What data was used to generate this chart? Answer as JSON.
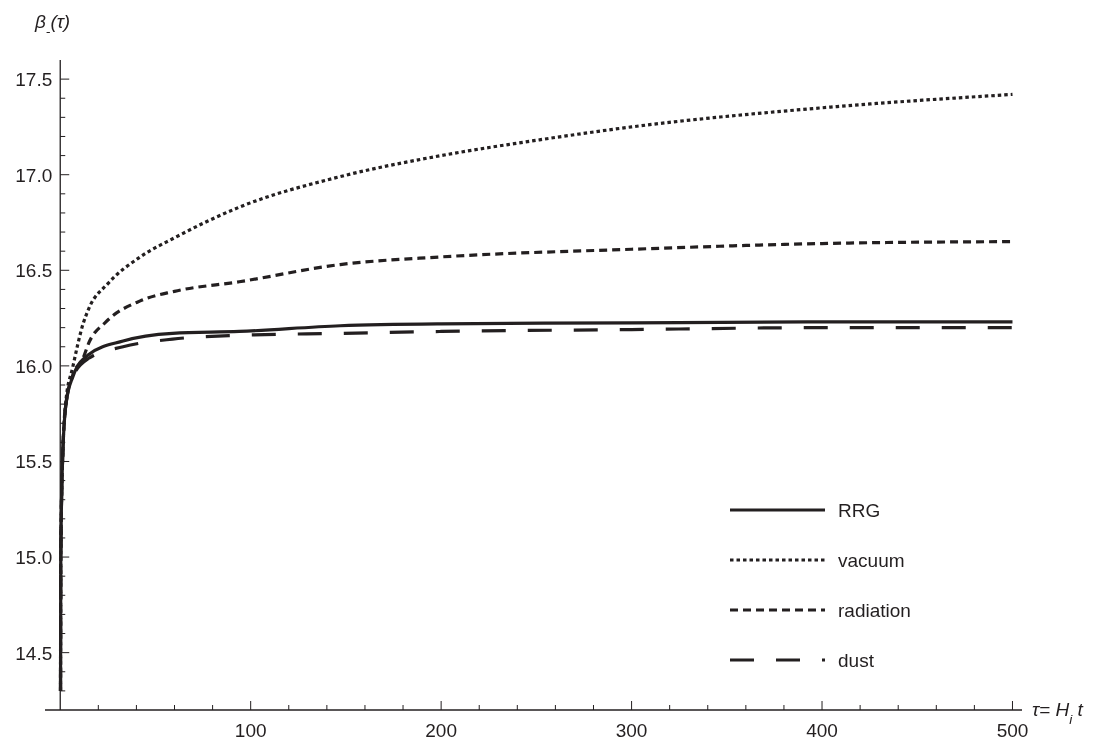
{
  "chart_data": {
    "type": "line",
    "xlabel": "τ= H$_{i}$ t",
    "ylabel": "β$_{-}$(τ)",
    "xlim": [
      -8,
      505
    ],
    "ylim": [
      14.2,
      17.6
    ],
    "xticks": [
      {
        "value": 20,
        "label": null
      },
      {
        "value": 40,
        "label": null
      },
      {
        "value": 60,
        "label": null
      },
      {
        "value": 80,
        "label": null
      },
      100,
      {
        "value": 120,
        "label": null
      },
      {
        "value": 140,
        "label": null
      },
      {
        "value": 160,
        "label": null
      },
      {
        "value": 180,
        "label": null
      },
      200,
      {
        "value": 220,
        "label": null
      },
      {
        "value": 240,
        "label": null
      },
      {
        "value": 260,
        "label": null
      },
      {
        "value": 280,
        "label": null
      },
      300,
      {
        "value": 320,
        "label": null
      },
      {
        "value": 340,
        "label": null
      },
      {
        "value": 360,
        "label": null
      },
      {
        "value": 380,
        "label": null
      },
      400,
      {
        "value": 420,
        "label": null
      },
      {
        "value": 440,
        "label": null
      },
      {
        "value": 460,
        "label": null
      },
      {
        "value": 480,
        "label": null
      },
      500
    ],
    "yticks": [
      {
        "value": 14.3,
        "label": null
      },
      {
        "value": 14.4,
        "label": null
      },
      {
        "value": 14.5,
        "label": "14.5"
      },
      {
        "value": 14.6,
        "label": null
      },
      {
        "value": 14.7,
        "label": null
      },
      {
        "value": 14.8,
        "label": null
      },
      {
        "value": 14.9,
        "label": null
      },
      {
        "value": 15.0,
        "label": "15.0"
      },
      {
        "value": 15.1,
        "label": null
      },
      {
        "value": 15.2,
        "label": null
      },
      {
        "value": 15.3,
        "label": null
      },
      {
        "value": 15.4,
        "label": null
      },
      {
        "value": 15.5,
        "label": "15.5"
      },
      {
        "value": 15.6,
        "label": null
      },
      {
        "value": 15.7,
        "label": null
      },
      {
        "value": 15.8,
        "label": null
      },
      {
        "value": 15.9,
        "label": null
      },
      {
        "value": 16.0,
        "label": "16.0"
      },
      {
        "value": 16.1,
        "label": null
      },
      {
        "value": 16.2,
        "label": null
      },
      {
        "value": 16.3,
        "label": null
      },
      {
        "value": 16.4,
        "label": null
      },
      {
        "value": 16.5,
        "label": "16.5"
      },
      {
        "value": 16.6,
        "label": null
      },
      {
        "value": 16.7,
        "label": null
      },
      {
        "value": 16.8,
        "label": null
      },
      {
        "value": 16.9,
        "label": null
      },
      {
        "value": 17.0,
        "label": "17.0"
      },
      {
        "value": 17.1,
        "label": null
      },
      {
        "value": 17.2,
        "label": null
      },
      {
        "value": 17.3,
        "label": null
      },
      {
        "value": 17.4,
        "label": null
      },
      {
        "value": 17.5,
        "label": "17.5"
      }
    ],
    "grid": false,
    "legend": "bottom right",
    "marker": "none",
    "series": [
      {
        "name": "RRG",
        "color": "#231f20",
        "line_style": "solid",
        "x": [
          0.15,
          0.3,
          1.2,
          3,
          6.5,
          15,
          33,
          59,
          94,
          147,
          200,
          300,
          400,
          500
        ],
        "values": [
          14.3,
          15.0,
          15.5,
          15.8,
          15.94,
          16.06,
          16.13,
          16.17,
          16.18,
          16.21,
          16.22,
          16.225,
          16.23,
          16.23
        ]
      },
      {
        "name": "vacuum",
        "color": "#231f20",
        "line_style": "dotted",
        "x": [
          0.15,
          0.3,
          1.2,
          3,
          6.5,
          12,
          15,
          25,
          42,
          60,
          94,
          147,
          200,
          250,
          300,
          400,
          500
        ],
        "values": [
          14.3,
          15.0,
          15.5,
          15.82,
          15.99,
          16.22,
          16.3,
          16.43,
          16.57,
          16.67,
          16.83,
          16.99,
          17.1,
          17.18,
          17.25,
          17.35,
          17.42
        ]
      },
      {
        "name": "radiation",
        "color": "#231f20",
        "line_style": "dashed",
        "x": [
          0.15,
          0.3,
          1.2,
          3,
          6.5,
          12,
          15,
          24,
          42,
          60,
          94,
          147,
          200,
          300,
          400,
          500
        ],
        "values": [
          14.3,
          15.0,
          15.5,
          15.8,
          15.95,
          16.04,
          16.12,
          16.23,
          16.34,
          16.39,
          16.44,
          16.53,
          16.57,
          16.61,
          16.64,
          16.65
        ]
      },
      {
        "name": "dust",
        "color": "#231f20",
        "line_style": "longdash",
        "x": [
          0.15,
          0.3,
          1.2,
          3,
          6.5,
          15,
          33,
          59,
          94,
          147,
          200,
          300,
          400,
          500
        ],
        "values": [
          14.3,
          15.0,
          15.5,
          15.8,
          15.94,
          16.04,
          16.1,
          16.14,
          16.16,
          16.17,
          16.18,
          16.19,
          16.2,
          16.2
        ]
      }
    ]
  }
}
